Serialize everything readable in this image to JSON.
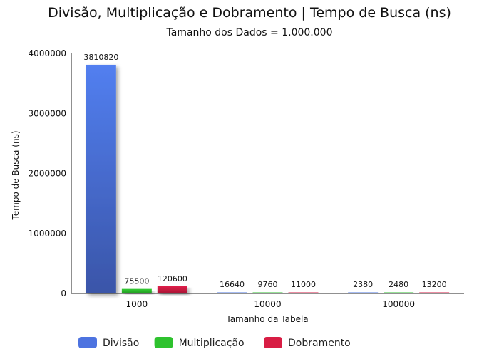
{
  "chart_data": {
    "type": "bar",
    "title": "Divisão, Multiplicação e Dobramento | Tempo de Busca (ns)",
    "subtitle": "Tamanho dos Dados = 1.000.000",
    "xlabel": "Tamanho da Tabela",
    "ylabel": "Tempo de Busca (ns)",
    "categories": [
      "1000",
      "10000",
      "100000"
    ],
    "ylim": [
      0,
      4000000
    ],
    "yticks": [
      "0",
      "1000000",
      "2000000",
      "3000000",
      "4000000"
    ],
    "grid": false,
    "legend_position": "bottom",
    "series": [
      {
        "name": "Divisão",
        "values": [
          3810820,
          16640,
          2380
        ],
        "color": "#4d73e0"
      },
      {
        "name": "Multiplicação",
        "values": [
          75500,
          9760,
          2480
        ],
        "color": "#2ec22e"
      },
      {
        "name": "Dobramento",
        "values": [
          120600,
          11000,
          13200
        ],
        "color": "#d81d44"
      }
    ]
  }
}
